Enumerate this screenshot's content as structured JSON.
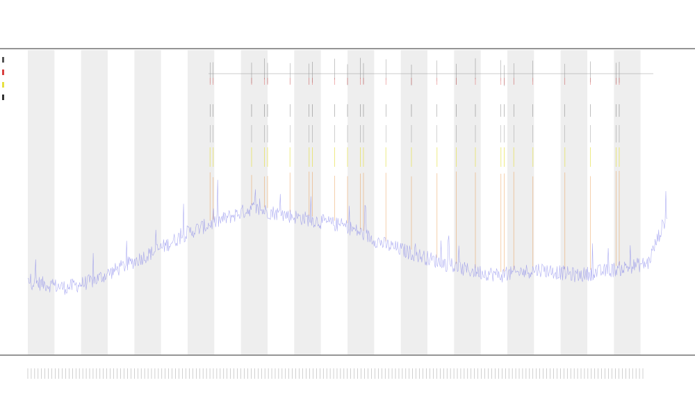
{
  "page": {
    "title": "",
    "subtitle_1": "",
    "subtitle_2": ""
  },
  "colors": {
    "background": "#ffffff",
    "band": "#eeeeee",
    "series_main": "#6a6ae8",
    "series_orange": "#e8903a",
    "series_red": "#d94040",
    "series_yellow": "#e6e040",
    "series_dark": "#333333",
    "axis": "#555555"
  },
  "chart_data": {
    "type": "line",
    "title": "",
    "xlabel": "",
    "ylabel": "",
    "grid": false,
    "legend_position": "top-left",
    "alternating_vertical_bands": true,
    "band_count": 12,
    "legend": [
      {
        "name": "",
        "color": "#555555"
      },
      {
        "name": "",
        "color": "#d94040"
      },
      {
        "name": "",
        "color": "#e6e040"
      },
      {
        "name": "",
        "color": "#333333"
      }
    ],
    "series": [
      {
        "name": "",
        "color": "#6a6ae8",
        "points": 900,
        "baseline_profile": [
          [
            0.0,
            0.08
          ],
          [
            0.06,
            0.06
          ],
          [
            0.1,
            0.08
          ],
          [
            0.14,
            0.12
          ],
          [
            0.2,
            0.18
          ],
          [
            0.25,
            0.24
          ],
          [
            0.3,
            0.28
          ],
          [
            0.35,
            0.32
          ],
          [
            0.4,
            0.3
          ],
          [
            0.45,
            0.28
          ],
          [
            0.5,
            0.26
          ],
          [
            0.56,
            0.2
          ],
          [
            0.62,
            0.16
          ],
          [
            0.68,
            0.12
          ],
          [
            0.74,
            0.1
          ],
          [
            0.8,
            0.12
          ],
          [
            0.86,
            0.1
          ],
          [
            0.92,
            0.12
          ],
          [
            0.97,
            0.14
          ],
          [
            1.0,
            0.3
          ]
        ]
      }
    ],
    "spike_positions": [
      0.285,
      0.29,
      0.35,
      0.37,
      0.375,
      0.41,
      0.44,
      0.445,
      0.48,
      0.5,
      0.52,
      0.525,
      0.56,
      0.6,
      0.64,
      0.67,
      0.7,
      0.74,
      0.745,
      0.76,
      0.79,
      0.84,
      0.88,
      0.92,
      0.925
    ]
  }
}
